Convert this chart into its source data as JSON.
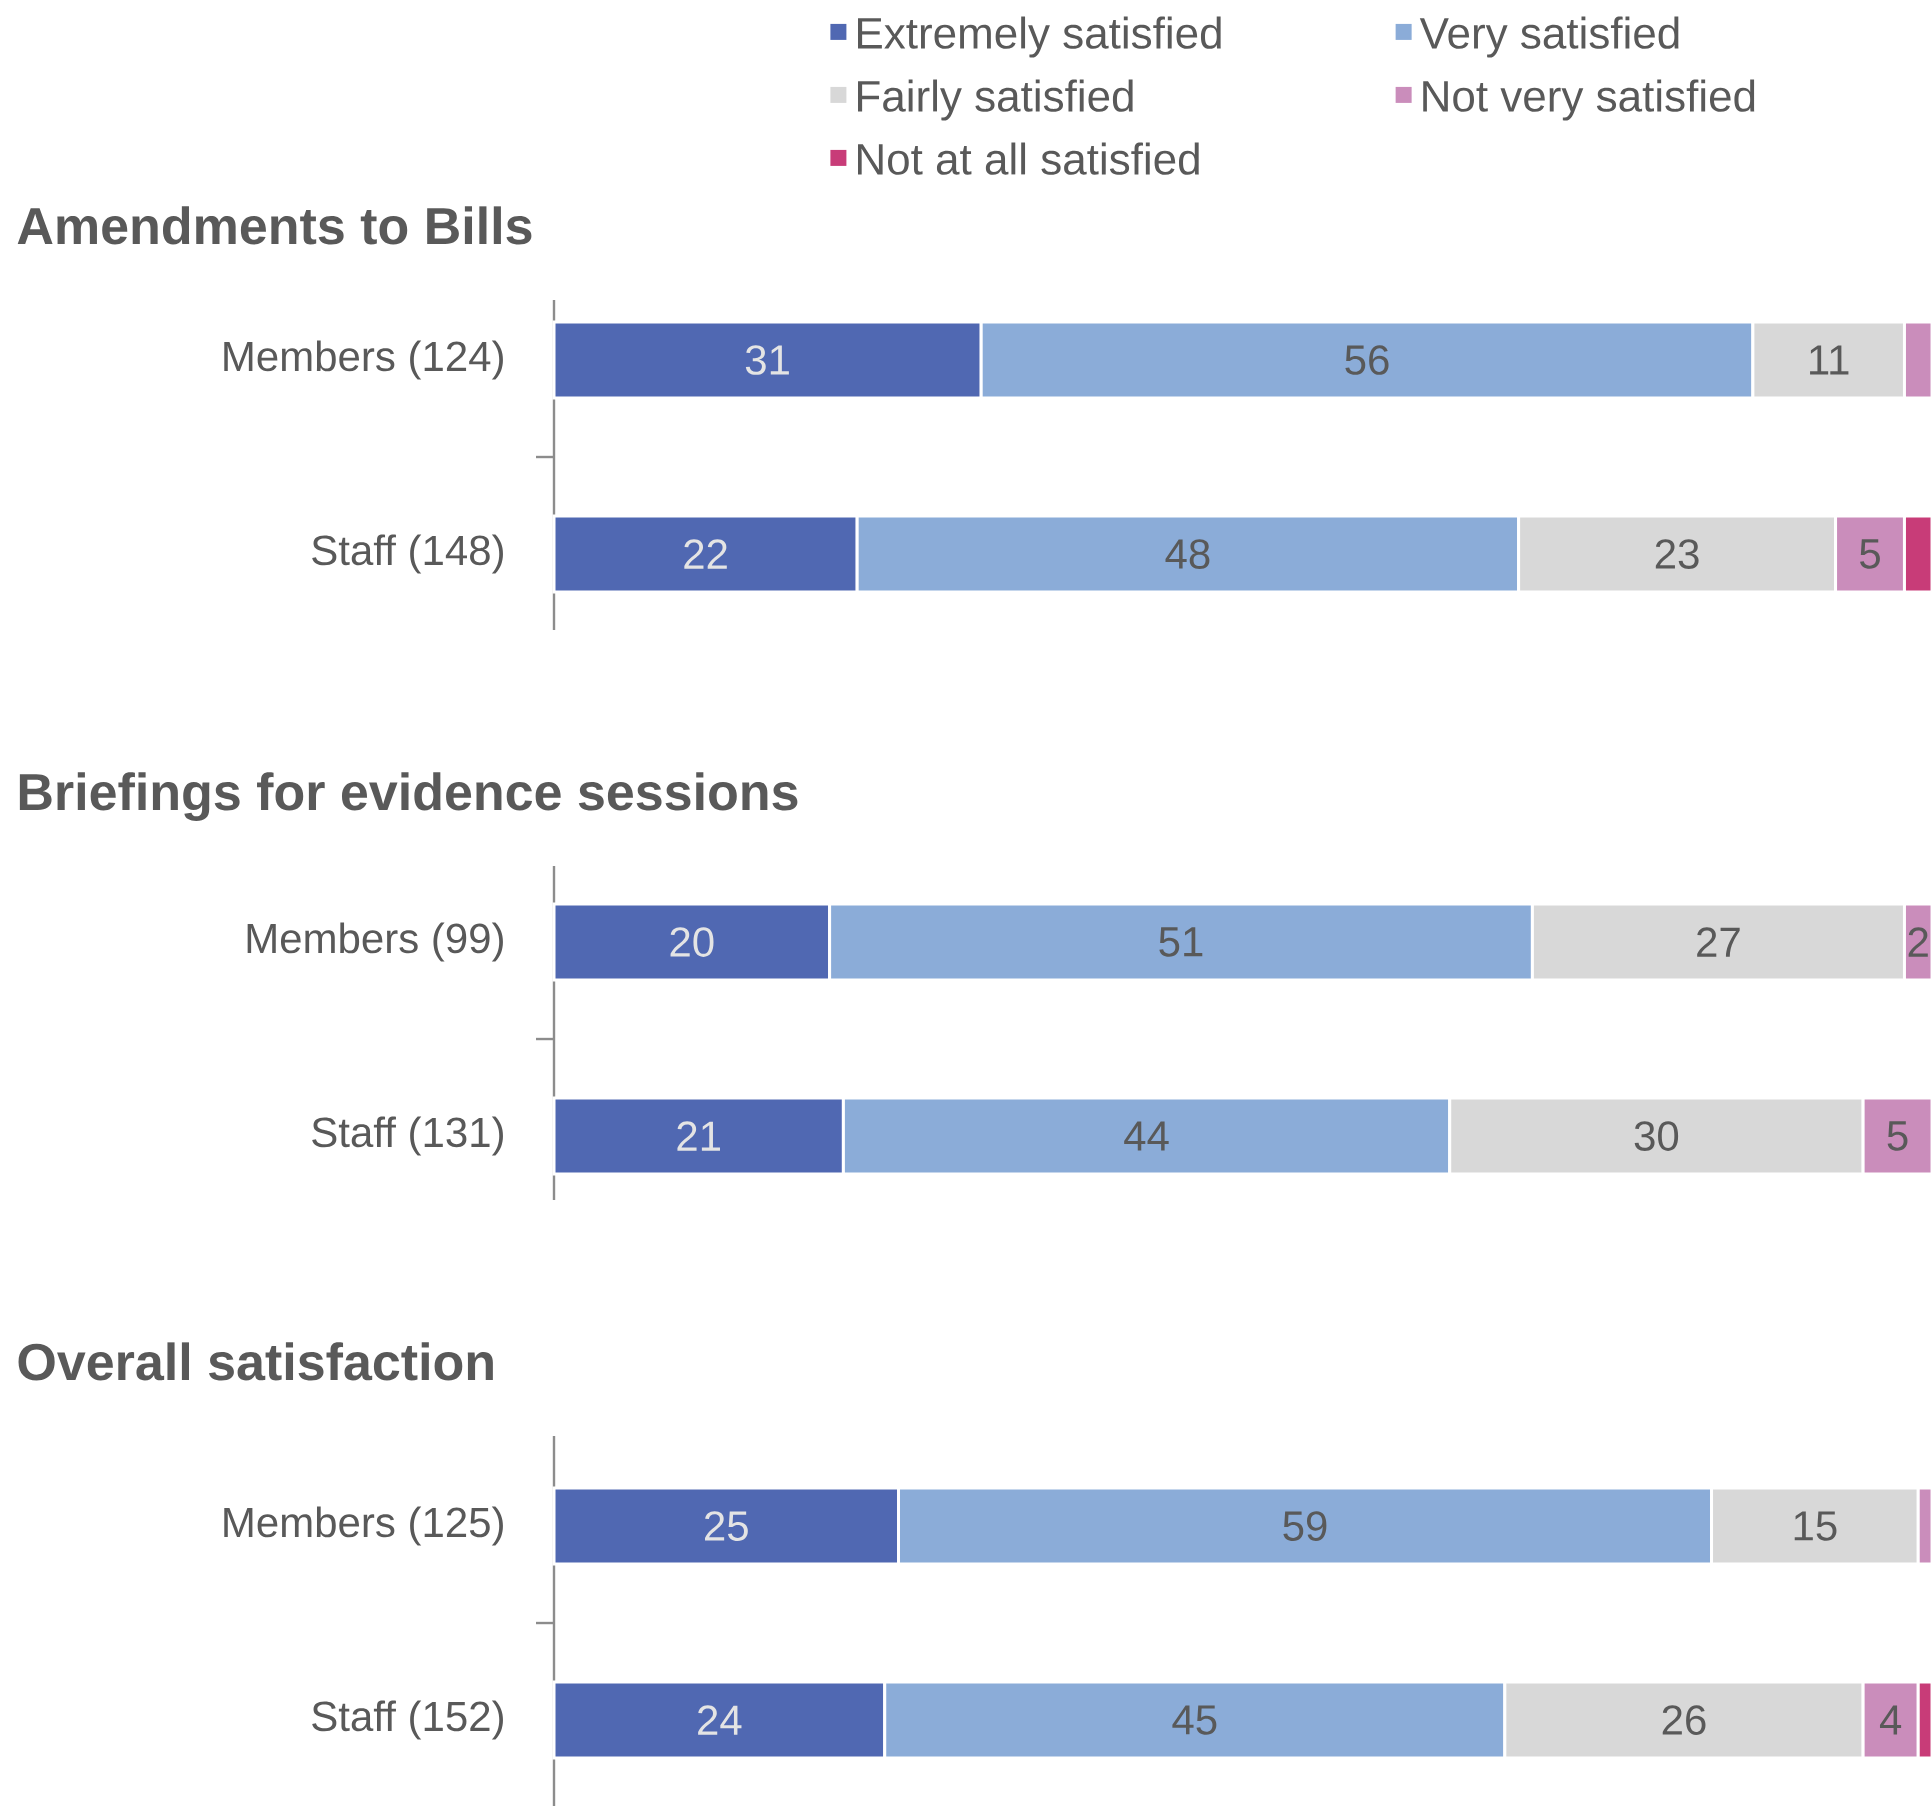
{
  "chart_data": [
    {
      "type": "bar",
      "orientation": "horizontal",
      "stacked": true,
      "title": "Amendments to Bills",
      "categories": [
        "Members (124)",
        "Staff (148)"
      ],
      "xlim": [
        0,
        100
      ],
      "tick_labels": "y",
      "legend": "top",
      "series": [
        {
          "name": "Extremely satisfied",
          "color": "#5068B2",
          "values": [
            31,
            22
          ],
          "value_labels": [
            "31",
            "22"
          ]
        },
        {
          "name": "Very satisfied",
          "color": "#8BACD8",
          "values": [
            56,
            48
          ],
          "value_labels": [
            "56",
            "48"
          ]
        },
        {
          "name": "Fairly satisfied",
          "color": "#D8D8D8",
          "values": [
            11,
            23
          ],
          "value_labels": [
            "11",
            "23"
          ]
        },
        {
          "name": "Not very satisfied",
          "color": "#CA8DBB",
          "values": [
            2,
            5
          ],
          "value_labels": [
            null,
            "5"
          ]
        },
        {
          "name": "Not at all satisfied",
          "color": "#C83C78",
          "values": [
            null,
            2
          ],
          "value_labels": [
            null,
            null
          ]
        }
      ]
    },
    {
      "type": "bar",
      "orientation": "horizontal",
      "stacked": true,
      "title": "Briefings for evidence sessions",
      "categories": [
        "Members (99)",
        "Staff (131)"
      ],
      "xlim": [
        0,
        100
      ],
      "tick_labels": "y",
      "series": [
        {
          "color": "#5068B2",
          "values": [
            20,
            21
          ],
          "value_labels": [
            "20",
            "21"
          ]
        },
        {
          "color": "#8BACD8",
          "values": [
            51,
            44
          ],
          "value_labels": [
            "51",
            "44"
          ]
        },
        {
          "color": "#D8D8D8",
          "values": [
            27,
            30
          ],
          "value_labels": [
            "27",
            "30"
          ]
        },
        {
          "color": "#CA8DBB",
          "values": [
            2,
            5
          ],
          "value_labels": [
            "2",
            "5"
          ]
        }
      ]
    },
    {
      "type": "bar",
      "orientation": "horizontal",
      "stacked": true,
      "title": "Overall satisfaction",
      "categories": [
        "Members (125)",
        "Staff (152)"
      ],
      "xlim": [
        0,
        100
      ],
      "tick_labels": "y",
      "series": [
        {
          "color": "#5068B2",
          "values": [
            25,
            24
          ],
          "value_labels": [
            "25",
            "24"
          ]
        },
        {
          "color": "#8BACD8",
          "values": [
            59,
            45
          ],
          "value_labels": [
            "59",
            "45"
          ]
        },
        {
          "color": "#D8D8D8",
          "values": [
            15,
            26
          ],
          "value_labels": [
            "15",
            "26"
          ]
        },
        {
          "color": "#CA8DBB",
          "values": [
            1,
            4
          ],
          "value_labels": [
            null,
            "4"
          ]
        },
        {
          "color": "#C83C78",
          "values": [
            null,
            1
          ],
          "value_labels": [
            null,
            null
          ]
        }
      ]
    }
  ]
}
